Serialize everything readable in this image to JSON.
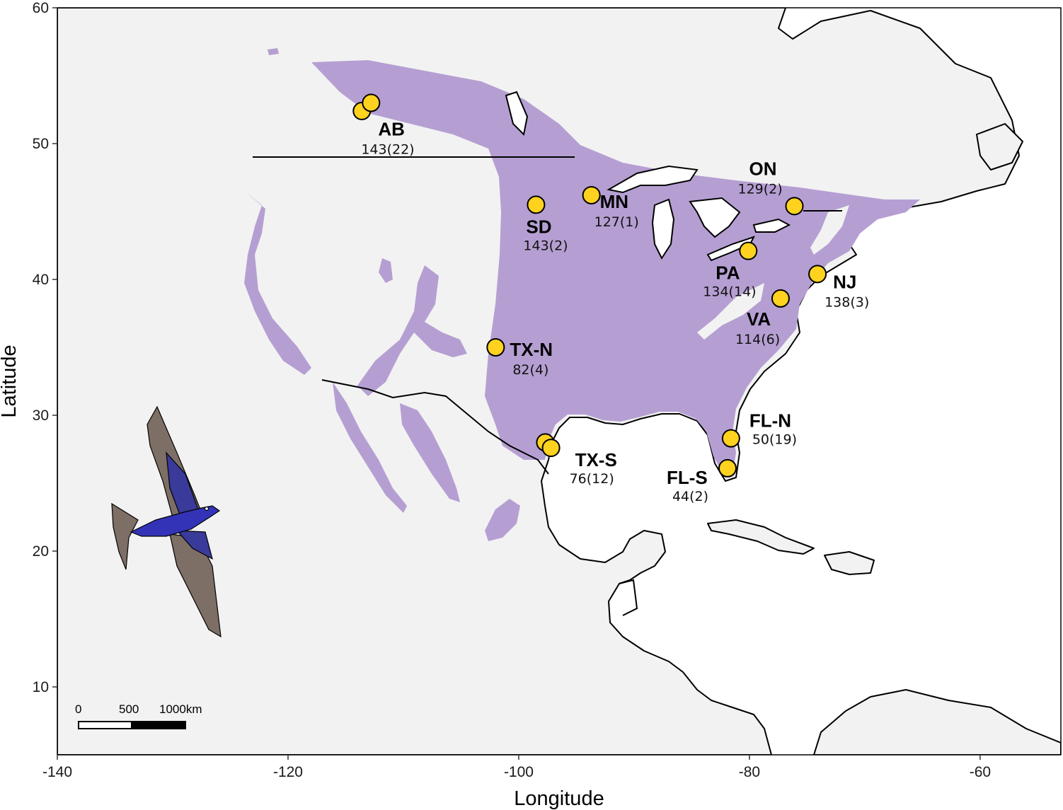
{
  "axes": {
    "xlabel": "Longitude",
    "ylabel": "Latitude",
    "xlim": [
      -140,
      -53
    ],
    "ylim": [
      5,
      60
    ],
    "xticks": [
      -140,
      -120,
      -100,
      -80,
      -60
    ],
    "yticks": [
      10,
      20,
      30,
      40,
      50,
      60
    ]
  },
  "colors": {
    "range": "#b59fd2",
    "land": "#f2f2f2",
    "site_fill": "#ffd21f",
    "site_stroke": "#000000"
  },
  "scale_bar": {
    "labels": [
      "0",
      "500",
      "1000km"
    ]
  },
  "sites": [
    {
      "code": "AB",
      "count": "143(22)",
      "points": [
        [
          -113.6,
          52.4
        ],
        [
          -112.8,
          53.0
        ]
      ]
    },
    {
      "code": "SD",
      "count": "143(2)",
      "points": [
        [
          -98.5,
          45.5
        ]
      ]
    },
    {
      "code": "MN",
      "count": "127(1)",
      "points": [
        [
          -93.7,
          46.2
        ]
      ]
    },
    {
      "code": "ON",
      "count": "129(2)",
      "points": [
        [
          -76.1,
          45.4
        ]
      ]
    },
    {
      "code": "PA",
      "count": "134(14)",
      "points": [
        [
          -80.1,
          42.1
        ]
      ]
    },
    {
      "code": "NJ",
      "count": "138(3)",
      "points": [
        [
          -74.1,
          40.4
        ]
      ]
    },
    {
      "code": "VA",
      "count": "114(6)",
      "points": [
        [
          -77.3,
          38.6
        ]
      ]
    },
    {
      "code": "TX-N",
      "count": "82(4)",
      "points": [
        [
          -102.0,
          35.0
        ]
      ]
    },
    {
      "code": "TX-S",
      "count": "76(12)",
      "points": [
        [
          -97.7,
          28.0
        ],
        [
          -97.2,
          27.6
        ]
      ]
    },
    {
      "code": "FL-N",
      "count": "50(19)",
      "points": [
        [
          -81.6,
          28.3
        ]
      ]
    },
    {
      "code": "FL-S",
      "count": "44(2)",
      "points": [
        [
          -81.9,
          26.1
        ]
      ]
    }
  ],
  "illustration": {
    "subject": "purple-martin-bird-icon"
  }
}
